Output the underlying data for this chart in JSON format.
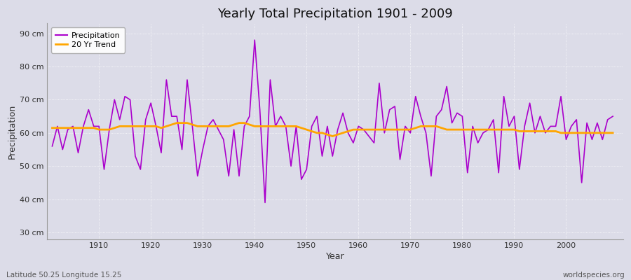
{
  "title": "Yearly Total Precipitation 1901 - 2009",
  "xlabel": "Year",
  "ylabel": "Precipitation",
  "subtitle_left": "Latitude 50.25 Longitude 15.25",
  "subtitle_right": "worldspecies.org",
  "line_color": "#AA00CC",
  "trend_color": "#FFA500",
  "bg_color": "#DCDCE8",
  "plot_bg_color": "#DCDCE8",
  "ylim": [
    28,
    93
  ],
  "yticks": [
    30,
    40,
    50,
    60,
    70,
    80,
    90
  ],
  "ytick_labels": [
    "30 cm",
    "40 cm",
    "50 cm",
    "60 cm",
    "70 cm",
    "80 cm",
    "90 cm"
  ],
  "years": [
    1901,
    1902,
    1903,
    1904,
    1905,
    1906,
    1907,
    1908,
    1909,
    1910,
    1911,
    1912,
    1913,
    1914,
    1915,
    1916,
    1917,
    1918,
    1919,
    1920,
    1921,
    1922,
    1923,
    1924,
    1925,
    1926,
    1927,
    1928,
    1929,
    1930,
    1931,
    1932,
    1933,
    1934,
    1935,
    1936,
    1937,
    1938,
    1939,
    1940,
    1941,
    1942,
    1943,
    1944,
    1945,
    1946,
    1947,
    1948,
    1949,
    1950,
    1951,
    1952,
    1953,
    1954,
    1955,
    1956,
    1957,
    1958,
    1959,
    1960,
    1961,
    1962,
    1963,
    1964,
    1965,
    1966,
    1967,
    1968,
    1969,
    1970,
    1971,
    1972,
    1973,
    1974,
    1975,
    1976,
    1977,
    1978,
    1979,
    1980,
    1981,
    1982,
    1983,
    1984,
    1985,
    1986,
    1987,
    1988,
    1989,
    1990,
    1991,
    1992,
    1993,
    1994,
    1995,
    1996,
    1997,
    1998,
    1999,
    2000,
    2001,
    2002,
    2003,
    2004,
    2005,
    2006,
    2007,
    2008,
    2009
  ],
  "precipitation": [
    56,
    62,
    55,
    61,
    62,
    54,
    62,
    67,
    62,
    62,
    49,
    61,
    70,
    64,
    71,
    70,
    53,
    49,
    64,
    69,
    62,
    54,
    76,
    65,
    65,
    55,
    76,
    62,
    47,
    55,
    62,
    64,
    61,
    58,
    47,
    61,
    47,
    62,
    65,
    88,
    67,
    39,
    76,
    62,
    65,
    62,
    50,
    62,
    46,
    49,
    62,
    65,
    53,
    62,
    53,
    61,
    66,
    60,
    57,
    62,
    61,
    59,
    57,
    75,
    60,
    67,
    68,
    52,
    62,
    60,
    71,
    65,
    60,
    47,
    65,
    67,
    74,
    63,
    66,
    65,
    48,
    62,
    57,
    60,
    61,
    64,
    48,
    71,
    62,
    65,
    49,
    62,
    69,
    60,
    65,
    60,
    62,
    62,
    71,
    58,
    62,
    64,
    45,
    63,
    58,
    63,
    58,
    64,
    65
  ],
  "trend": [
    61.5,
    61.5,
    61.5,
    61.5,
    61.5,
    61.5,
    61.5,
    61.5,
    61.5,
    61.0,
    61.0,
    61.0,
    61.5,
    62.0,
    62.0,
    62.0,
    62.0,
    62.0,
    62.0,
    62.0,
    62.0,
    61.5,
    62.0,
    62.5,
    63.0,
    63.0,
    63.0,
    62.5,
    62.0,
    62.0,
    62.0,
    62.0,
    62.0,
    62.0,
    62.0,
    62.5,
    63.0,
    63.0,
    62.5,
    62.0,
    62.0,
    62.0,
    62.0,
    62.0,
    62.0,
    62.0,
    62.0,
    62.0,
    61.5,
    61.0,
    60.5,
    60.0,
    60.0,
    59.5,
    59.0,
    59.5,
    60.0,
    60.5,
    61.0,
    61.0,
    61.0,
    61.0,
    61.0,
    61.0,
    61.0,
    61.0,
    61.0,
    61.0,
    61.0,
    61.0,
    61.5,
    62.0,
    62.0,
    62.0,
    62.0,
    61.5,
    61.0,
    61.0,
    61.0,
    61.0,
    61.0,
    61.0,
    61.0,
    61.0,
    61.0,
    61.0,
    61.0,
    61.0,
    61.0,
    61.0,
    60.5,
    60.5,
    60.5,
    60.5,
    60.5,
    60.5,
    60.5,
    60.5,
    60.0,
    60.0,
    60.0,
    60.0,
    60.0,
    60.0,
    60.0,
    60.0,
    60.0,
    60.0,
    60.0
  ]
}
